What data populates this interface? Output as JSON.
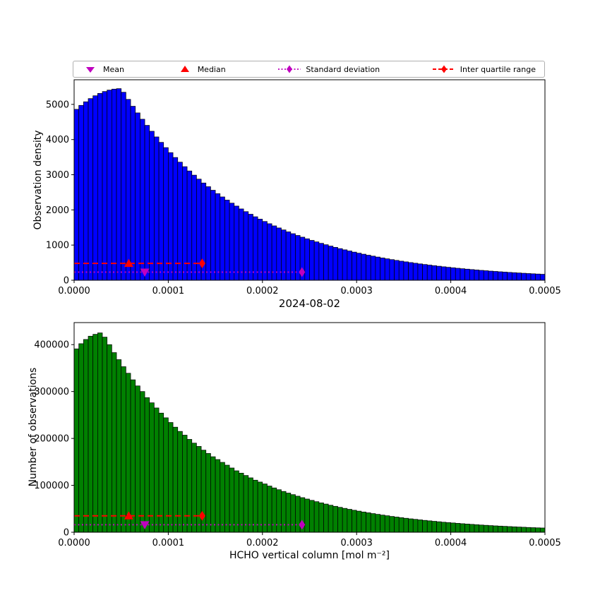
{
  "figure": {
    "title": "2024-08-02",
    "xlabel": "HCHO vertical column [mol m⁻²]",
    "background": "#ffffff"
  },
  "legend": {
    "items": [
      {
        "label": "Mean",
        "marker": "triangle-down",
        "color": "#bf00bf"
      },
      {
        "label": "Median",
        "marker": "triangle-up",
        "color": "#ff0000"
      },
      {
        "label": "Standard deviation",
        "marker": "diamond-dotted-line",
        "color": "#bf00bf"
      },
      {
        "label": "Inter quartile range",
        "marker": "diamond-dashed-line",
        "color": "#ff0000"
      }
    ]
  },
  "chart_data": [
    {
      "type": "bar",
      "name": "observation-density-histogram",
      "title": "",
      "ylabel": "Observation density",
      "xlabel": "",
      "bar_color": "#0000ff",
      "edge_color": "#000000",
      "xlim": [
        0,
        0.0005
      ],
      "ylim": [
        0,
        5700
      ],
      "bin_width": 5e-06,
      "n_bins": 100,
      "xticks": [
        0,
        0.0001,
        0.0002,
        0.0003,
        0.0004,
        0.0005
      ],
      "xtick_labels": [
        "0.0000",
        "0.0001",
        "0.0002",
        "0.0003",
        "0.0004",
        "0.0005"
      ],
      "yticks": [
        0,
        1000,
        2000,
        3000,
        4000,
        5000
      ],
      "ytick_labels": [
        "0",
        "1000",
        "2000",
        "3000",
        "4000",
        "5000"
      ],
      "values": [
        4860,
        4972,
        5074,
        5165,
        5245,
        5312,
        5366,
        5407,
        5434,
        5448,
        5345,
        5142,
        4947,
        4758,
        4578,
        4404,
        4236,
        4075,
        3920,
        3771,
        3628,
        3490,
        3357,
        3229,
        3107,
        2988,
        2875,
        2765,
        2660,
        2559,
        2462,
        2369,
        2279,
        2192,
        2109,
        2028,
        1951,
        1877,
        1805,
        1737,
        1671,
        1607,
        1546,
        1487,
        1431,
        1376,
        1324,
        1274,
        1225,
        1179,
        1134,
        1091,
        1050,
        1010,
        971,
        935,
        899,
        865,
        832,
        800,
        770,
        741,
        713,
        686,
        660,
        634,
        610,
        587,
        565,
        543,
        523,
        503,
        484,
        465,
        448,
        431,
        414,
        399,
        383,
        369,
        355,
        341,
        328,
        316,
        304,
        292,
        281,
        271,
        260,
        251,
        241,
        232,
        223,
        215,
        207,
        199,
        191,
        184,
        177,
        170
      ],
      "stats": {
        "mean": {
          "x": 7.5e-05,
          "y": 230
        },
        "median": {
          "x": 5.8e-05,
          "y": 480
        },
        "iqr_line": {
          "x0": 0,
          "x1": 0.000136,
          "y": 480
        },
        "std_line": {
          "x0": 0,
          "x1": 0.000242,
          "y": 230
        }
      }
    },
    {
      "type": "bar",
      "name": "number-of-observations-histogram",
      "title": "2024-08-02",
      "ylabel": "Number of observations",
      "xlabel": "HCHO vertical column [mol m⁻²]",
      "bar_color": "#008000",
      "edge_color": "#000000",
      "xlim": [
        0,
        0.0005
      ],
      "ylim": [
        0,
        447000
      ],
      "bin_width": 5e-06,
      "n_bins": 100,
      "xticks": [
        0,
        0.0001,
        0.0002,
        0.0003,
        0.0004,
        0.0005
      ],
      "xtick_labels": [
        "0.0000",
        "0.0001",
        "0.0002",
        "0.0003",
        "0.0004",
        "0.0005"
      ],
      "yticks": [
        0,
        100000,
        200000,
        300000,
        400000
      ],
      "ytick_labels": [
        "0",
        "100000",
        "200000",
        "300000",
        "400000"
      ],
      "values": [
        391000,
        402000,
        411000,
        418000,
        422000,
        425000,
        416000,
        400000,
        383000,
        368000,
        353000,
        339000,
        325000,
        312000,
        300000,
        287000,
        276000,
        265000,
        254000,
        244000,
        234000,
        224000,
        215000,
        207000,
        198000,
        190000,
        183000,
        175000,
        168000,
        161000,
        155000,
        149000,
        143000,
        137000,
        131000,
        126000,
        121000,
        116000,
        111000,
        107000,
        103000,
        98500,
        94500,
        90700,
        87000,
        83500,
        80200,
        76900,
        73800,
        70800,
        68000,
        65200,
        62600,
        60100,
        57600,
        55300,
        53100,
        50900,
        48900,
        46900,
        45000,
        43200,
        41500,
        39800,
        38200,
        36600,
        35200,
        33700,
        32400,
        31100,
        29800,
        28600,
        27500,
        26400,
        25300,
        24300,
        23300,
        22400,
        21400,
        20600,
        19800,
        19000,
        18200,
        17500,
        16800,
        16100,
        15400,
        14800,
        14200,
        13600,
        13100,
        12600,
        12100,
        11600,
        11100,
        10700,
        10200,
        9800,
        9400,
        9100
      ],
      "stats": {
        "mean": {
          "x": 7.5e-05,
          "y": 16000
        },
        "median": {
          "x": 5.8e-05,
          "y": 35000
        },
        "iqr_line": {
          "x0": 0,
          "x1": 0.000136,
          "y": 35000
        },
        "std_line": {
          "x0": 0,
          "x1": 0.000242,
          "y": 16000
        }
      }
    }
  ]
}
